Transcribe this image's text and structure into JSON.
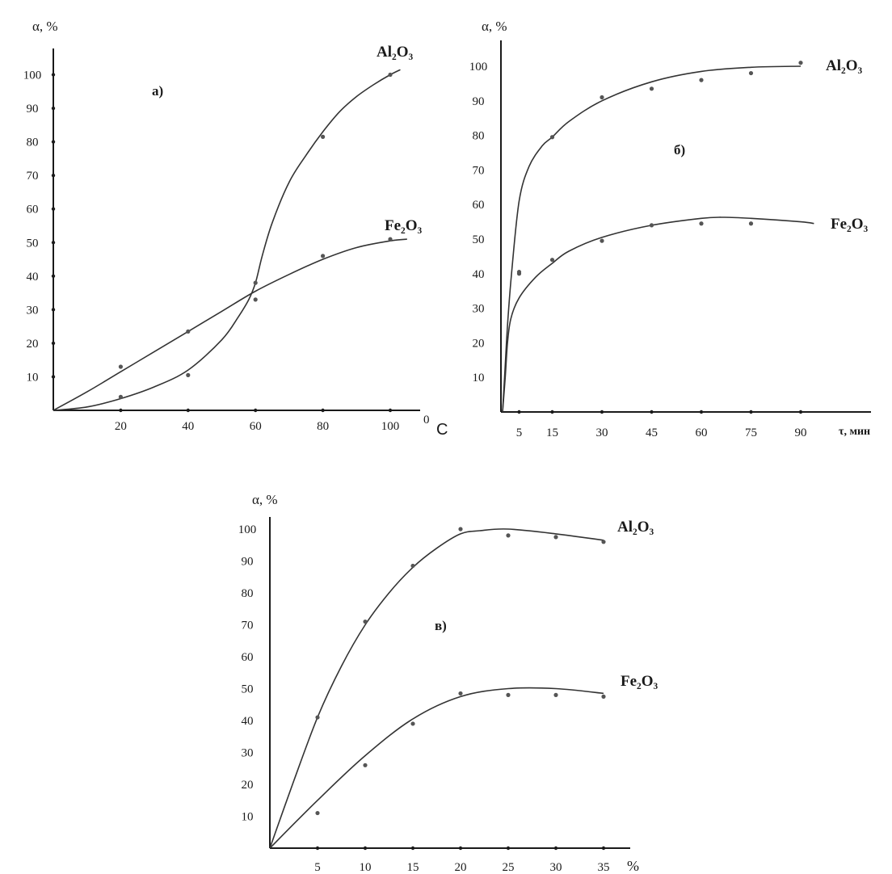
{
  "chart_data": [
    {
      "type": "line",
      "panel_label": "а)",
      "ylabel": "α, %",
      "xlabel_unit_sup": "0",
      "xlabel_unit": "С",
      "x_ticks": [
        "20",
        "40",
        "60",
        "80",
        "100"
      ],
      "y_ticks": [
        "10",
        "20",
        "30",
        "40",
        "50",
        "60",
        "70",
        "80",
        "90",
        "100"
      ],
      "xlim": [
        0,
        105
      ],
      "ylim": [
        0,
        105
      ],
      "series": [
        {
          "name": "Al₂O₃",
          "curve": [
            [
              0,
              0
            ],
            [
              10,
              1
            ],
            [
              20,
              3.5
            ],
            [
              30,
              7
            ],
            [
              40,
              12
            ],
            [
              50,
              21
            ],
            [
              55,
              28
            ],
            [
              58,
              33
            ],
            [
              60,
              38
            ],
            [
              62,
              46
            ],
            [
              65,
              56
            ],
            [
              70,
              68
            ],
            [
              75,
              76
            ],
            [
              80,
              83
            ],
            [
              85,
              89
            ],
            [
              90,
              93.5
            ],
            [
              95,
              97
            ],
            [
              100,
              100
            ],
            [
              103,
              101.5
            ]
          ],
          "points": [
            [
              20,
              4
            ],
            [
              40,
              10.5
            ],
            [
              60,
              33
            ],
            [
              80,
              81.5
            ],
            [
              100,
              100
            ]
          ]
        },
        {
          "name": "Fe₂O₃",
          "curve": [
            [
              0,
              0
            ],
            [
              10,
              5.5
            ],
            [
              20,
              11.5
            ],
            [
              30,
              17.5
            ],
            [
              40,
              23.5
            ],
            [
              50,
              29.5
            ],
            [
              60,
              35.5
            ],
            [
              70,
              40.5
            ],
            [
              80,
              45
            ],
            [
              90,
              48.5
            ],
            [
              100,
              50.5
            ],
            [
              105,
              51
            ]
          ],
          "points": [
            [
              20,
              13
            ],
            [
              40,
              23.5
            ],
            [
              60,
              38
            ],
            [
              80,
              46
            ],
            [
              100,
              51
            ]
          ]
        }
      ]
    },
    {
      "type": "line",
      "panel_label": "б)",
      "ylabel": "α, %",
      "xlabel": "τ, мин",
      "x_ticks": [
        "5",
        "15",
        "30",
        "45",
        "60",
        "75",
        "90"
      ],
      "y_ticks": [
        "10",
        "20",
        "30",
        "40",
        "50",
        "60",
        "70",
        "80",
        "90",
        "100"
      ],
      "xlim": [
        0,
        100
      ],
      "ylim": [
        0,
        105
      ],
      "series": [
        {
          "name": "Al₂O₃",
          "curve": [
            [
              0,
              0
            ],
            [
              0.6,
              10
            ],
            [
              1.5,
              25
            ],
            [
              2.7,
              40
            ],
            [
              5,
              61
            ],
            [
              8,
              71
            ],
            [
              12,
              77
            ],
            [
              15,
              79.5
            ],
            [
              20,
              84
            ],
            [
              30,
              90
            ],
            [
              45,
              95.5
            ],
            [
              60,
              98.5
            ],
            [
              75,
              99.7
            ],
            [
              90,
              100
            ]
          ],
          "points": [
            [
              5,
              40
            ],
            [
              15,
              79.5
            ],
            [
              30,
              91
            ],
            [
              45,
              93.5
            ],
            [
              60,
              96
            ],
            [
              75,
              98
            ],
            [
              90,
              101
            ]
          ]
        },
        {
          "name": "Fe₂O₃",
          "curve": [
            [
              0,
              0
            ],
            [
              0.8,
              10
            ],
            [
              1.5,
              20
            ],
            [
              2.5,
              27
            ],
            [
              5,
              33
            ],
            [
              10,
              39
            ],
            [
              15,
              43
            ],
            [
              20,
              46.5
            ],
            [
              30,
              50.5
            ],
            [
              45,
              54
            ],
            [
              60,
              56
            ],
            [
              67,
              56.3
            ],
            [
              75,
              56
            ],
            [
              90,
              55
            ],
            [
              94,
              54.5
            ]
          ],
          "points": [
            [
              5,
              40.5
            ],
            [
              15,
              44
            ],
            [
              30,
              49.5
            ],
            [
              45,
              54
            ],
            [
              60,
              54.5
            ],
            [
              75,
              54.5
            ]
          ]
        }
      ]
    },
    {
      "type": "line",
      "panel_label": "в)",
      "ylabel": "α, %",
      "xlabel_unit": "%",
      "x_ticks": [
        "5",
        "10",
        "15",
        "20",
        "25",
        "30",
        "35"
      ],
      "y_ticks": [
        "10",
        "20",
        "30",
        "40",
        "50",
        "60",
        "70",
        "80",
        "90",
        "100"
      ],
      "xlim": [
        0,
        38
      ],
      "ylim": [
        0,
        105
      ],
      "series": [
        {
          "name": "Al₂O₃",
          "curve": [
            [
              0,
              0
            ],
            [
              2.5,
              21
            ],
            [
              5,
              41
            ],
            [
              7.5,
              57
            ],
            [
              10,
              70
            ],
            [
              12.5,
              80
            ],
            [
              15,
              88
            ],
            [
              17.5,
              94
            ],
            [
              20,
              98.5
            ],
            [
              22,
              99.5
            ],
            [
              25,
              100
            ],
            [
              30,
              98.5
            ],
            [
              35,
              96.5
            ]
          ],
          "points": [
            [
              5,
              41
            ],
            [
              10,
              71
            ],
            [
              15,
              88.5
            ],
            [
              20,
              100
            ],
            [
              25,
              98
            ],
            [
              30,
              97.5
            ],
            [
              35,
              96
            ]
          ]
        },
        {
          "name": "Fe₂O₃",
          "curve": [
            [
              0,
              0
            ],
            [
              5,
              15
            ],
            [
              10,
              29
            ],
            [
              15,
              40.5
            ],
            [
              20,
              47.5
            ],
            [
              25,
              50
            ],
            [
              30,
              50
            ],
            [
              35,
              48.5
            ]
          ],
          "points": [
            [
              5,
              11
            ],
            [
              10,
              26
            ],
            [
              15,
              39
            ],
            [
              20,
              48.5
            ],
            [
              25,
              48
            ],
            [
              30,
              48
            ],
            [
              35,
              47.5
            ]
          ]
        }
      ]
    }
  ]
}
